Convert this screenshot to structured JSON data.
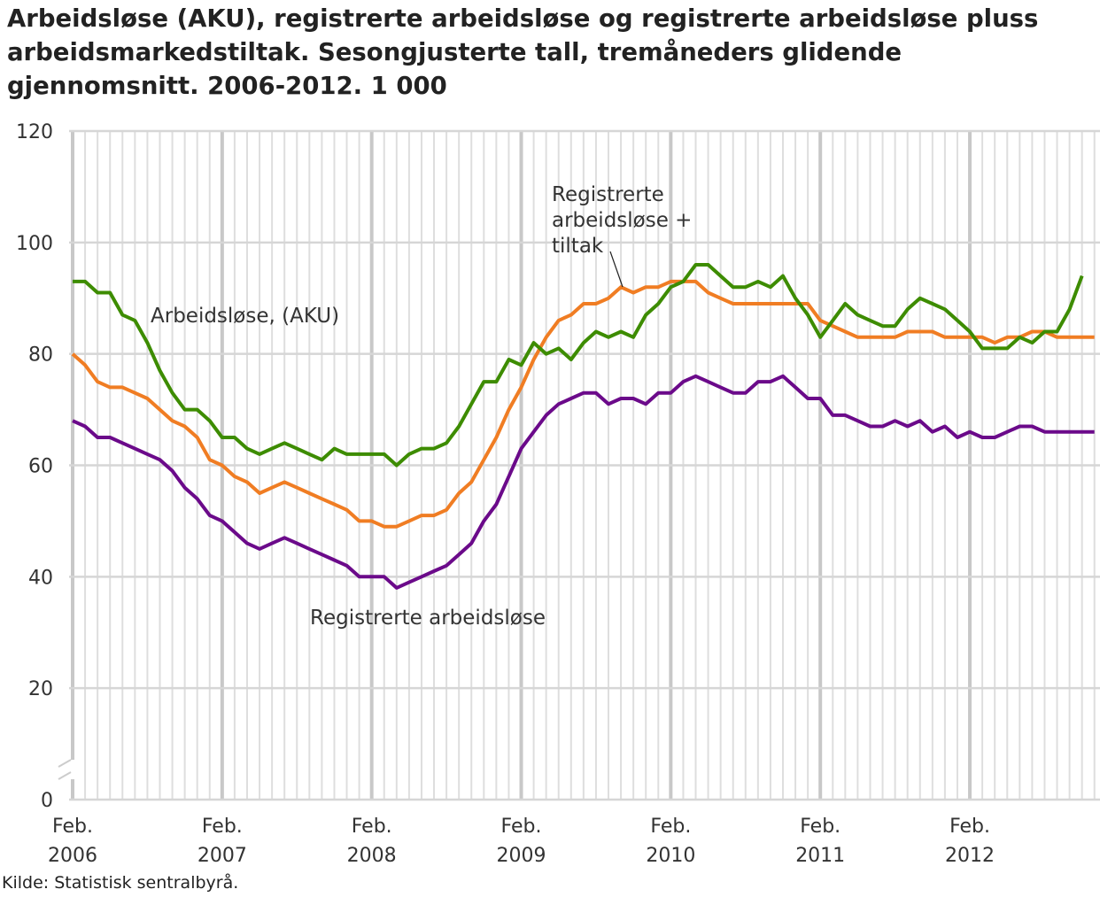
{
  "chart_data": {
    "type": "line",
    "title": "Arbeidsløse (AKU), registrerte arbeidsløse og registrerte arbeidsløse pluss arbeidsmarkedstiltak. Sesongjusterte tall, tremåneders glidende gjennomsnitt. 2006-2012. 1 000",
    "source": "Kilde: Statistisk sentralbyrå.",
    "ylim": [
      0,
      120
    ],
    "yticks": [
      0,
      20,
      40,
      60,
      80,
      100,
      120
    ],
    "xticks": [
      {
        "line1": "Feb.",
        "line2": "2006"
      },
      {
        "line1": "Feb.",
        "line2": "2007"
      },
      {
        "line1": "Feb.",
        "line2": "2008"
      },
      {
        "line1": "Feb.",
        "line2": "2009"
      },
      {
        "line1": "Feb.",
        "line2": "2010"
      },
      {
        "line1": "Feb.",
        "line2": "2011"
      },
      {
        "line1": "Feb.",
        "line2": "2012"
      }
    ],
    "x_start": "2006-02",
    "x_frequency": "monthly",
    "grid": true,
    "y_axis_break": true,
    "series": [
      {
        "name": "Arbeidsløse, (AKU)",
        "color": "#3d8c00",
        "start": "2006-02",
        "values": [
          93,
          93,
          91,
          91,
          87,
          86,
          82,
          77,
          73,
          70,
          70,
          68,
          65,
          65,
          63,
          62,
          63,
          64,
          63,
          62,
          61,
          63,
          62,
          62,
          62,
          62,
          60,
          62,
          63,
          63,
          64,
          67,
          71,
          75,
          75,
          79,
          78,
          82,
          80,
          81,
          79,
          82,
          84,
          83,
          84,
          83,
          87,
          89,
          92,
          93,
          96,
          96,
          94,
          92,
          92,
          93,
          92,
          94,
          90,
          87,
          83,
          86,
          89,
          87,
          86,
          85,
          85,
          88,
          90,
          89,
          88,
          86,
          84,
          81,
          81,
          81,
          83,
          82,
          84,
          84,
          88,
          94
        ]
      },
      {
        "name": "Registrerte arbeidsløse + tiltak",
        "color": "#f07d23",
        "start": "2006-02",
        "values": [
          80,
          78,
          75,
          74,
          74,
          73,
          72,
          70,
          68,
          67,
          65,
          61,
          60,
          58,
          57,
          55,
          56,
          57,
          56,
          55,
          54,
          53,
          52,
          50,
          50,
          49,
          49,
          50,
          51,
          51,
          52,
          55,
          57,
          61,
          65,
          70,
          74,
          79,
          83,
          86,
          87,
          89,
          89,
          90,
          92,
          91,
          92,
          92,
          93,
          93,
          93,
          91,
          90,
          89,
          89,
          89,
          89,
          89,
          89,
          89,
          86,
          85,
          84,
          83,
          83,
          83,
          83,
          84,
          84,
          84,
          83,
          83,
          83,
          83,
          82,
          83,
          83,
          84,
          84,
          83,
          83,
          83,
          83
        ]
      },
      {
        "name": "Registrerte arbeidsløse",
        "color": "#6b0a8a",
        "start": "2006-02",
        "values": [
          68,
          67,
          65,
          65,
          64,
          63,
          62,
          61,
          59,
          56,
          54,
          51,
          50,
          48,
          46,
          45,
          46,
          47,
          46,
          45,
          44,
          43,
          42,
          40,
          40,
          40,
          38,
          39,
          40,
          41,
          42,
          44,
          46,
          50,
          53,
          58,
          63,
          66,
          69,
          71,
          72,
          73,
          73,
          71,
          72,
          72,
          71,
          73,
          73,
          75,
          76,
          75,
          74,
          73,
          73,
          75,
          75,
          76,
          74,
          72,
          72,
          69,
          69,
          68,
          67,
          67,
          68,
          67,
          68,
          66,
          67,
          65,
          66,
          65,
          65,
          66,
          67,
          67,
          66,
          66,
          66,
          66,
          66
        ]
      }
    ],
    "annotations": [
      {
        "lines": [
          "Arbeidsløse, (AKU)"
        ],
        "series": 0
      },
      {
        "lines": [
          "Registrerte",
          "arbeidsløse +",
          "tiltak"
        ],
        "series": 1
      },
      {
        "lines": [
          "Registrerte arbeidsløse"
        ],
        "series": 2
      }
    ]
  }
}
